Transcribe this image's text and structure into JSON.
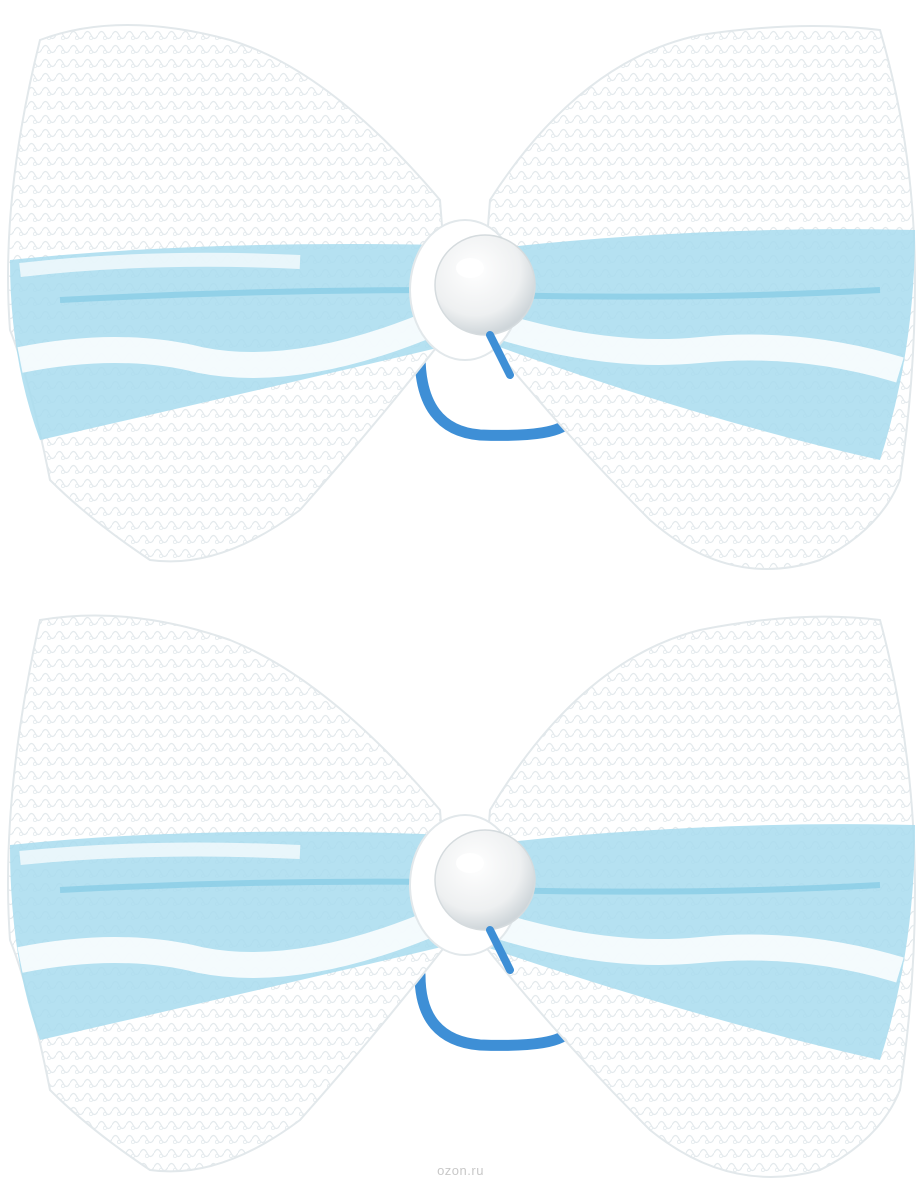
{
  "scene": {
    "background_color": "#ffffff",
    "lace_color": "#ffffff",
    "lace_shadow_color": "#dfe6ea",
    "ribbon_color": "#a8dcef",
    "ribbon_dark_color": "#7cc6e3",
    "band_color": "#3e8fd6",
    "pearl_color": "#f4f4f4"
  },
  "objects": [
    {
      "name": "lace-bow-hair-tie",
      "icon": "bow-icon"
    },
    {
      "name": "lace-bow-hair-tie",
      "icon": "bow-icon"
    }
  ],
  "watermark": {
    "text": "ozon.ru"
  }
}
